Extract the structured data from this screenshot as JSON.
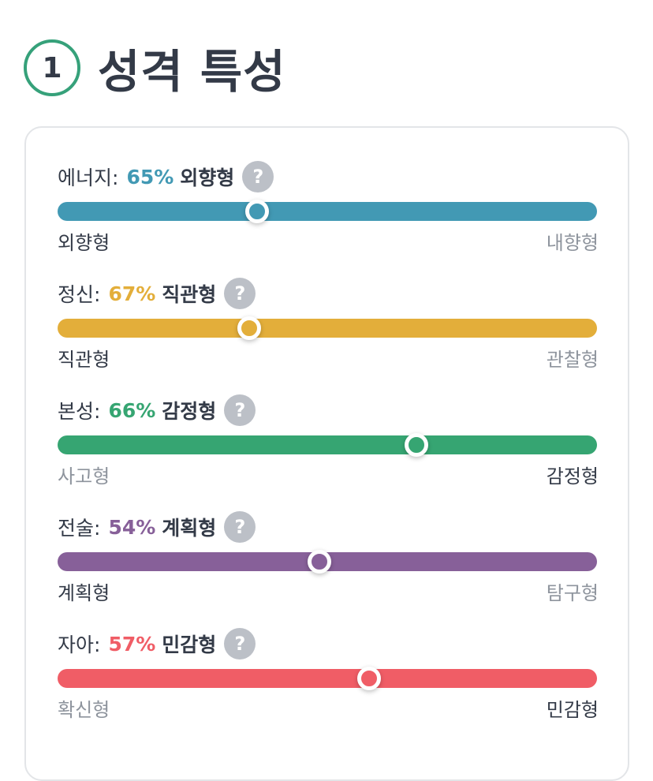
{
  "header": {
    "number": "1",
    "title": "성격 특성"
  },
  "help_glyph": "?",
  "traits": [
    {
      "name": "에너지:",
      "percent": "65%",
      "type": "외향형",
      "left_label": "외향형",
      "right_label": "내향형",
      "color": "#4299b4",
      "position": 0.37,
      "active_side": "left"
    },
    {
      "name": "정신:",
      "percent": "67%",
      "type": "직관형",
      "left_label": "직관형",
      "right_label": "관찰형",
      "color": "#e3ae3a",
      "position": 0.355,
      "active_side": "left"
    },
    {
      "name": "본성:",
      "percent": "66%",
      "type": "감정형",
      "left_label": "사고형",
      "right_label": "감정형",
      "color": "#36a572",
      "position": 0.665,
      "active_side": "right"
    },
    {
      "name": "전술:",
      "percent": "54%",
      "type": "계획형",
      "left_label": "계획형",
      "right_label": "탐구형",
      "color": "#876099",
      "position": 0.485,
      "active_side": "left"
    },
    {
      "name": "자아:",
      "percent": "57%",
      "type": "민감형",
      "left_label": "확신형",
      "right_label": "민감형",
      "color": "#f05d66",
      "position": 0.577,
      "active_side": "right"
    }
  ]
}
